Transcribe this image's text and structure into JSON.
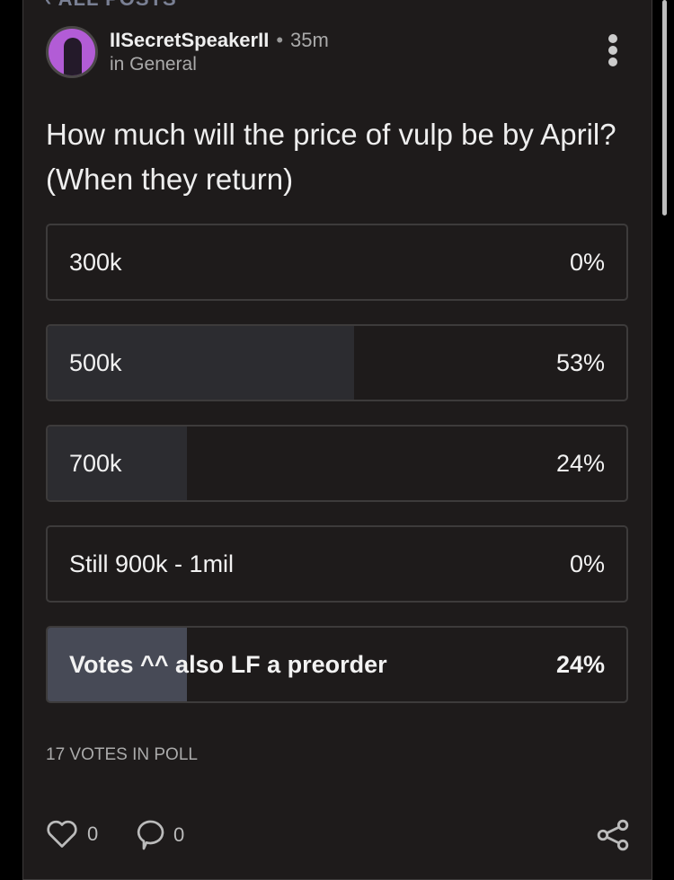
{
  "nav": {
    "back_label": "ALL POSTS"
  },
  "post": {
    "author": "IISecretSpeakerII",
    "time": "35m",
    "location": "in General",
    "question": "How much will the price of vulp be by April? (When they return)"
  },
  "poll": {
    "options": [
      {
        "label": "300k",
        "percent_label": "0%",
        "percent": 0,
        "selected": false
      },
      {
        "label": "500k",
        "percent_label": "53%",
        "percent": 53,
        "selected": false
      },
      {
        "label": "700k",
        "percent_label": "24%",
        "percent": 24,
        "selected": false
      },
      {
        "label": "Still 900k - 1mil",
        "percent_label": "0%",
        "percent": 0,
        "selected": false
      },
      {
        "label": "Votes ^^ also LF a preorder",
        "percent_label": "24%",
        "percent": 24,
        "selected": true
      }
    ],
    "total": "17 VOTES IN POLL"
  },
  "actions": {
    "likes": "0",
    "comments": "0"
  },
  "colors": {
    "fill": "#2c2c30",
    "selected_fill": "#474a56",
    "avatar": "#b25cd6"
  }
}
